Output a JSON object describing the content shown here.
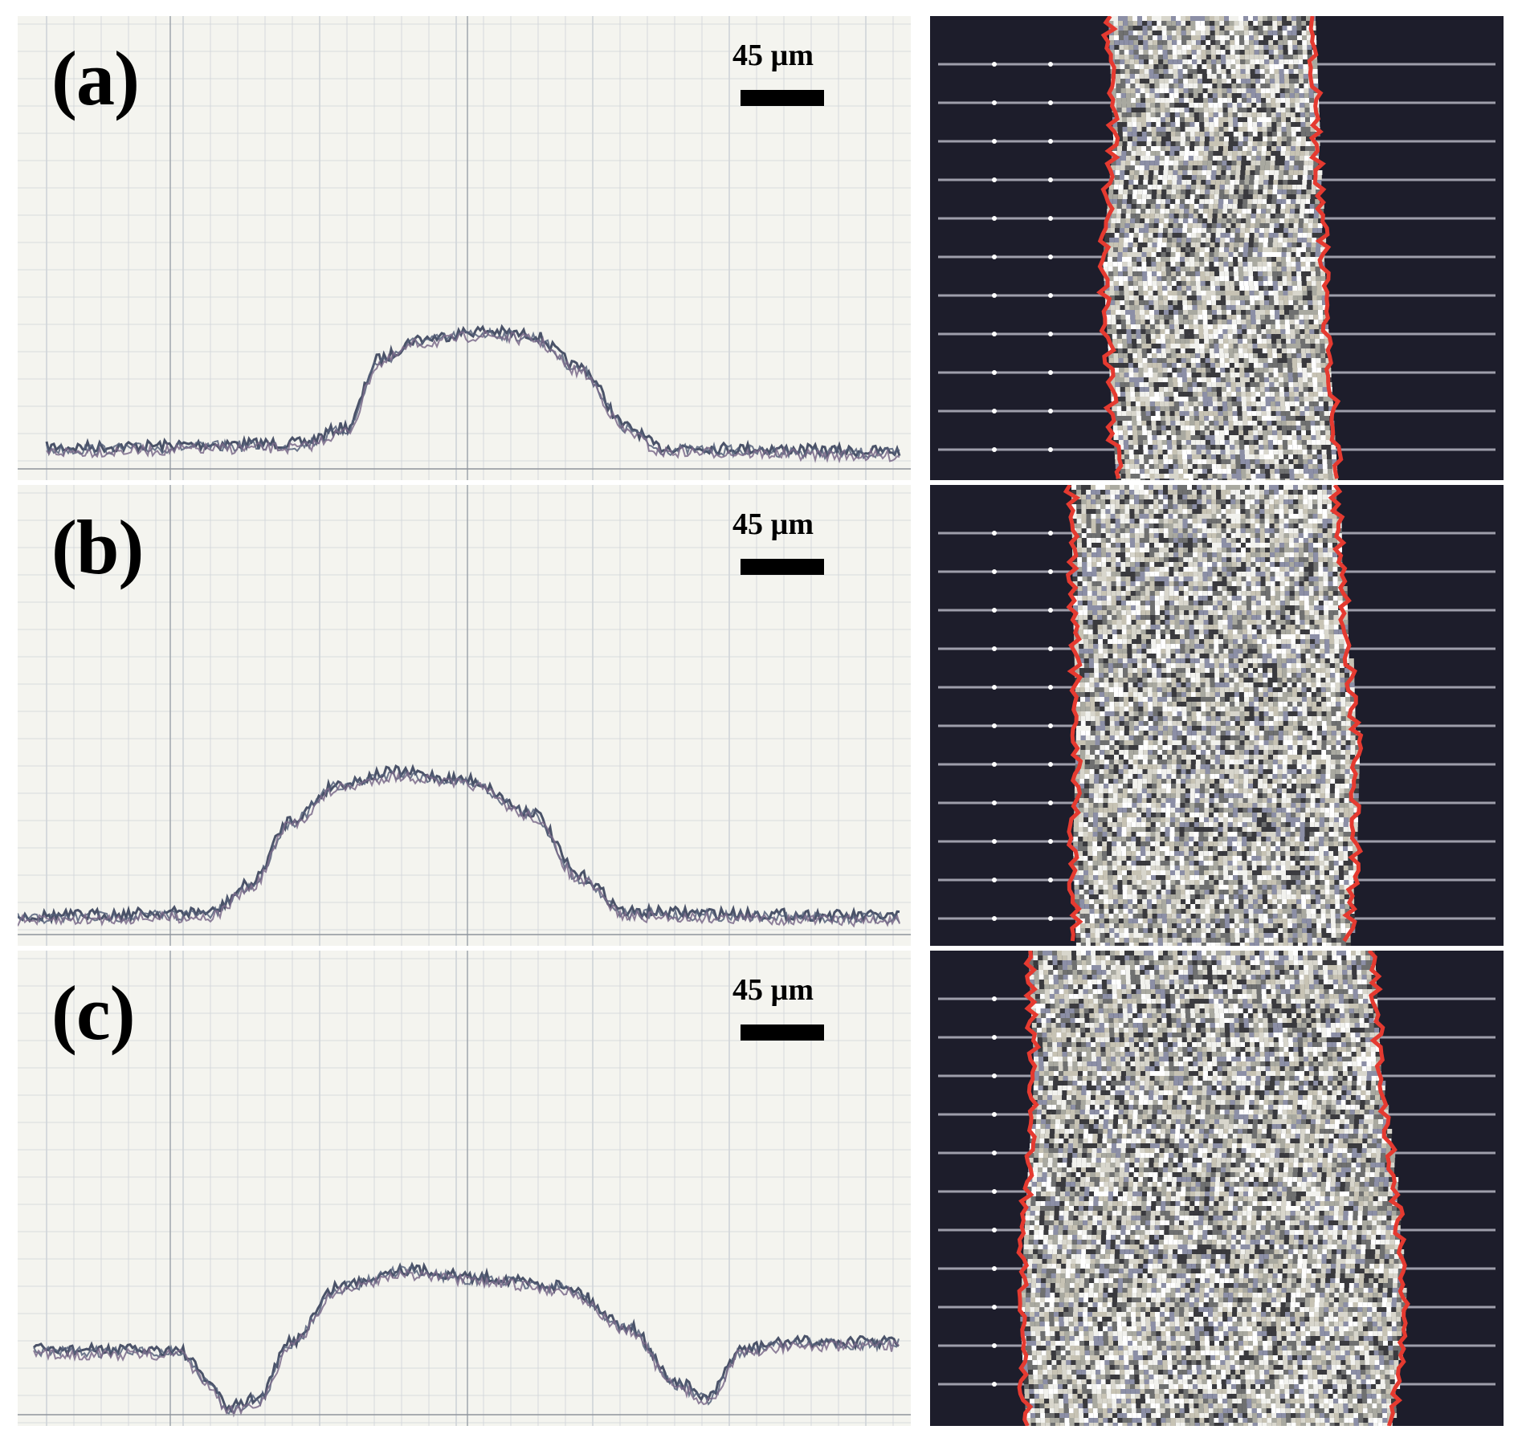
{
  "panels": [
    {
      "label": "(a)",
      "scale_text": "45 µm"
    },
    {
      "label": "(b)",
      "scale_text": "45 µm"
    },
    {
      "label": "(c)",
      "scale_text": "45 µm"
    }
  ],
  "colors": {
    "profile_background": "#f4f4ef",
    "grid": "#cfd3d8",
    "trace": "#2c3550",
    "micrograph_background": "#1d1d2b",
    "particle_edge": "#e53a30",
    "scan_line": "#c9c9d6"
  }
}
